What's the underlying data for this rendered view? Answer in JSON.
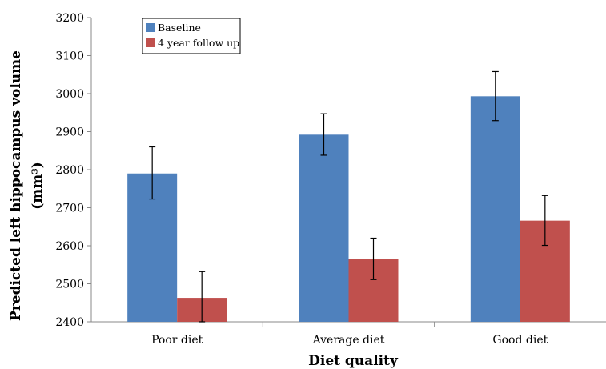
{
  "chart_data": {
    "type": "bar",
    "title": "",
    "xlabel": "Diet quality",
    "ylabel": "Predicted left hippocampus volume",
    "ylabel_unit": "(mm³)",
    "categories": [
      "Poor diet",
      "Average diet",
      "Good diet"
    ],
    "ylim": [
      2400,
      3200
    ],
    "yticks": [
      2400,
      2500,
      2600,
      2700,
      2800,
      2900,
      3000,
      3100,
      3200
    ],
    "grid": false,
    "legend_position": "top-left",
    "series": [
      {
        "name": "Baseline",
        "color": "#4F81BD",
        "values": [
          2790,
          2892,
          2993
        ],
        "error_low": [
          2723,
          2838,
          2929
        ],
        "error_high": [
          2860,
          2947,
          3058
        ]
      },
      {
        "name": "4 year follow up",
        "color": "#C0504D",
        "values": [
          2463,
          2565,
          2666
        ],
        "error_low": [
          2400,
          2511,
          2601
        ],
        "error_high": [
          2532,
          2620,
          2732
        ]
      }
    ]
  }
}
